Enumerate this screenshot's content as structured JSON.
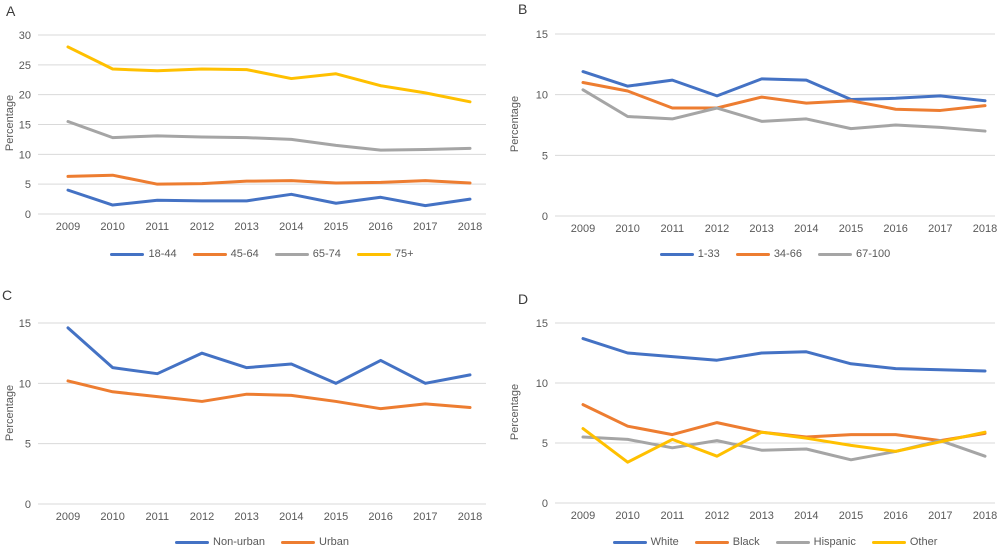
{
  "figure": {
    "background": "#ffffff"
  },
  "colors": {
    "grid": "#d9d9d9",
    "tick_text": "#595959",
    "panel_letter": "#3a3a3a",
    "series_blue": "#4472c4",
    "series_orange": "#ed7d31",
    "series_gray": "#a5a5a5",
    "series_yellow": "#ffc000"
  },
  "chart_data": [
    {
      "type": "line",
      "panel_label": "A",
      "title": "",
      "xlabel": "",
      "ylabel": "Percentage",
      "categories": [
        "2009",
        "2010",
        "2011",
        "2012",
        "2013",
        "2014",
        "2015",
        "2016",
        "2017",
        "2018"
      ],
      "ylim": [
        0,
        30
      ],
      "yticks": [
        0,
        5,
        10,
        15,
        20,
        25,
        30
      ],
      "grid": true,
      "legend_position": "bottom",
      "series": [
        {
          "name": "18-44",
          "color": "#4472c4",
          "values": [
            4.0,
            1.5,
            2.3,
            2.2,
            2.2,
            3.3,
            1.8,
            2.8,
            1.4,
            2.5
          ]
        },
        {
          "name": "45-64",
          "color": "#ed7d31",
          "values": [
            6.3,
            6.5,
            5.0,
            5.1,
            5.5,
            5.6,
            5.2,
            5.3,
            5.6,
            5.2
          ]
        },
        {
          "name": "65-74",
          "color": "#a5a5a5",
          "values": [
            15.5,
            12.8,
            13.1,
            12.9,
            12.8,
            12.5,
            11.5,
            10.7,
            10.8,
            11.0
          ]
        },
        {
          "name": "75+",
          "color": "#ffc000",
          "values": [
            28.0,
            24.3,
            24.0,
            24.3,
            24.2,
            22.7,
            23.5,
            21.5,
            20.3,
            18.8
          ]
        }
      ]
    },
    {
      "type": "line",
      "panel_label": "B",
      "title": "",
      "xlabel": "",
      "ylabel": "Percentage",
      "categories": [
        "2009",
        "2010",
        "2011",
        "2012",
        "2013",
        "2014",
        "2015",
        "2016",
        "2017",
        "2018"
      ],
      "ylim": [
        0,
        15
      ],
      "yticks": [
        0,
        5,
        10,
        15
      ],
      "grid": true,
      "legend_position": "bottom",
      "series": [
        {
          "name": "1-33",
          "color": "#4472c4",
          "values": [
            11.9,
            10.7,
            11.2,
            9.9,
            11.3,
            11.2,
            9.6,
            9.7,
            9.9,
            9.5
          ]
        },
        {
          "name": "34-66",
          "color": "#ed7d31",
          "values": [
            11.0,
            10.3,
            8.9,
            8.9,
            9.8,
            9.3,
            9.5,
            8.8,
            8.7,
            9.1
          ]
        },
        {
          "name": "67-100",
          "color": "#a5a5a5",
          "values": [
            10.4,
            8.2,
            8.0,
            8.9,
            7.8,
            8.0,
            7.2,
            7.5,
            7.3,
            7.0
          ]
        }
      ]
    },
    {
      "type": "line",
      "panel_label": "C",
      "title": "",
      "xlabel": "",
      "ylabel": "Percentage",
      "categories": [
        "2009",
        "2010",
        "2011",
        "2012",
        "2013",
        "2014",
        "2015",
        "2016",
        "2017",
        "2018"
      ],
      "ylim": [
        0,
        15
      ],
      "yticks": [
        0,
        5,
        10,
        15
      ],
      "grid": true,
      "legend_position": "bottom",
      "series": [
        {
          "name": "Non-urban",
          "color": "#4472c4",
          "values": [
            14.6,
            11.3,
            10.8,
            12.5,
            11.3,
            11.6,
            10.0,
            11.9,
            10.0,
            10.7
          ]
        },
        {
          "name": "Urban",
          "color": "#ed7d31",
          "values": [
            10.2,
            9.3,
            8.9,
            8.5,
            9.1,
            9.0,
            8.5,
            7.9,
            8.3,
            8.0
          ]
        }
      ]
    },
    {
      "type": "line",
      "panel_label": "D",
      "title": "",
      "xlabel": "",
      "ylabel": "Percentage",
      "categories": [
        "2009",
        "2010",
        "2011",
        "2012",
        "2013",
        "2014",
        "2015",
        "2016",
        "2017",
        "2018"
      ],
      "ylim": [
        0,
        15
      ],
      "yticks": [
        0,
        5,
        10,
        15
      ],
      "grid": true,
      "legend_position": "bottom",
      "series": [
        {
          "name": "White",
          "color": "#4472c4",
          "values": [
            13.7,
            12.5,
            12.2,
            11.9,
            12.5,
            12.6,
            11.6,
            11.2,
            11.1,
            11.0
          ]
        },
        {
          "name": "Black",
          "color": "#ed7d31",
          "values": [
            8.2,
            6.4,
            5.7,
            6.7,
            5.9,
            5.5,
            5.7,
            5.7,
            5.2,
            5.8
          ]
        },
        {
          "name": "Hispanic",
          "color": "#a5a5a5",
          "values": [
            5.5,
            5.3,
            4.6,
            5.2,
            4.4,
            4.5,
            3.6,
            4.3,
            5.2,
            3.9
          ]
        },
        {
          "name": "Other",
          "color": "#ffc000",
          "values": [
            6.2,
            3.4,
            5.3,
            3.9,
            5.9,
            5.4,
            4.8,
            4.3,
            5.1,
            5.9
          ]
        }
      ]
    }
  ]
}
